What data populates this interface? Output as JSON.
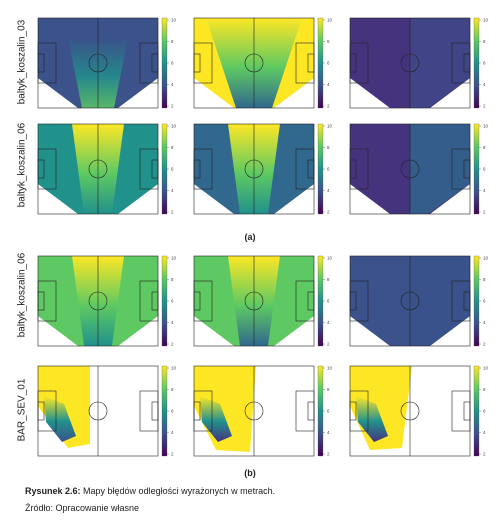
{
  "figure": {
    "section_a": {
      "label": "(a)",
      "rows": [
        "baltyk_koszalin_03",
        "baltyk_koszalin_06"
      ]
    },
    "section_b": {
      "label": "(b)",
      "rows": [
        "baltyk_koszalin_06",
        "BAR_SEV_01"
      ]
    },
    "colorbar_ticks": [
      "10",
      "8",
      "6",
      "4",
      "2"
    ],
    "colorscale": [
      "#440154",
      "#3b528b",
      "#21918c",
      "#5ec962",
      "#fde725"
    ]
  },
  "caption": {
    "label": "Rysunek 2.6:",
    "text": " Mapy błędów odległości wyrażonych w metrach.",
    "source": "Źródło: Opracowanie własne"
  }
}
